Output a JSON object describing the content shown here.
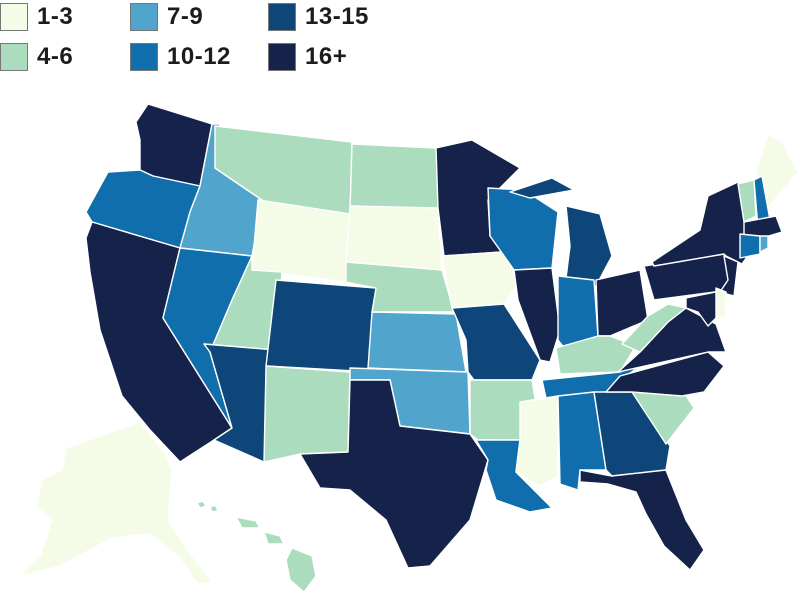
{
  "legend": [
    {
      "label": "1-3",
      "color": "#f4fbe6"
    },
    {
      "label": "4-6",
      "color": "#aadcbd"
    },
    {
      "label": "7-9",
      "color": "#51a5cc"
    },
    {
      "label": "10-12",
      "color": "#116ead"
    },
    {
      "label": "13-15",
      "color": "#0f4679"
    },
    {
      "label": "16+",
      "color": "#15224a"
    }
  ],
  "states": [
    {
      "abbr": "WA",
      "bin": "16+"
    },
    {
      "abbr": "OR",
      "bin": "10-12"
    },
    {
      "abbr": "CA",
      "bin": "16+"
    },
    {
      "abbr": "ID",
      "bin": "7-9"
    },
    {
      "abbr": "NV",
      "bin": "10-12"
    },
    {
      "abbr": "MT",
      "bin": "4-6"
    },
    {
      "abbr": "WY",
      "bin": "1-3"
    },
    {
      "abbr": "UT",
      "bin": "4-6"
    },
    {
      "abbr": "AZ",
      "bin": "13-15"
    },
    {
      "abbr": "CO",
      "bin": "13-15"
    },
    {
      "abbr": "NM",
      "bin": "4-6"
    },
    {
      "abbr": "ND",
      "bin": "4-6"
    },
    {
      "abbr": "SD",
      "bin": "1-3"
    },
    {
      "abbr": "NE",
      "bin": "4-6"
    },
    {
      "abbr": "KS",
      "bin": "7-9"
    },
    {
      "abbr": "OK",
      "bin": "7-9"
    },
    {
      "abbr": "TX",
      "bin": "16+"
    },
    {
      "abbr": "MN",
      "bin": "16+"
    },
    {
      "abbr": "IA",
      "bin": "1-3"
    },
    {
      "abbr": "MO",
      "bin": "13-15"
    },
    {
      "abbr": "AR",
      "bin": "4-6"
    },
    {
      "abbr": "LA",
      "bin": "10-12"
    },
    {
      "abbr": "WI",
      "bin": "10-12"
    },
    {
      "abbr": "IL",
      "bin": "16+"
    },
    {
      "abbr": "MI",
      "bin": "13-15"
    },
    {
      "abbr": "IN",
      "bin": "10-12"
    },
    {
      "abbr": "OH",
      "bin": "16+"
    },
    {
      "abbr": "KY",
      "bin": "4-6"
    },
    {
      "abbr": "TN",
      "bin": "10-12"
    },
    {
      "abbr": "MS",
      "bin": "1-3"
    },
    {
      "abbr": "AL",
      "bin": "10-12"
    },
    {
      "abbr": "GA",
      "bin": "13-15"
    },
    {
      "abbr": "FL",
      "bin": "16+"
    },
    {
      "abbr": "SC",
      "bin": "4-6"
    },
    {
      "abbr": "NC",
      "bin": "16+"
    },
    {
      "abbr": "VA",
      "bin": "16+"
    },
    {
      "abbr": "WV",
      "bin": "4-6"
    },
    {
      "abbr": "PA",
      "bin": "16+"
    },
    {
      "abbr": "NY",
      "bin": "16+"
    },
    {
      "abbr": "ME",
      "bin": "1-3"
    },
    {
      "abbr": "VT",
      "bin": "4-6"
    },
    {
      "abbr": "NH",
      "bin": "10-12"
    },
    {
      "abbr": "MA",
      "bin": "16+"
    },
    {
      "abbr": "CT",
      "bin": "10-12"
    },
    {
      "abbr": "RI",
      "bin": "7-9"
    },
    {
      "abbr": "NJ",
      "bin": "16+"
    },
    {
      "abbr": "DE",
      "bin": "1-3"
    },
    {
      "abbr": "MD",
      "bin": "16+"
    },
    {
      "abbr": "AK",
      "bin": "1-3"
    },
    {
      "abbr": "HI",
      "bin": "4-6"
    }
  ]
}
